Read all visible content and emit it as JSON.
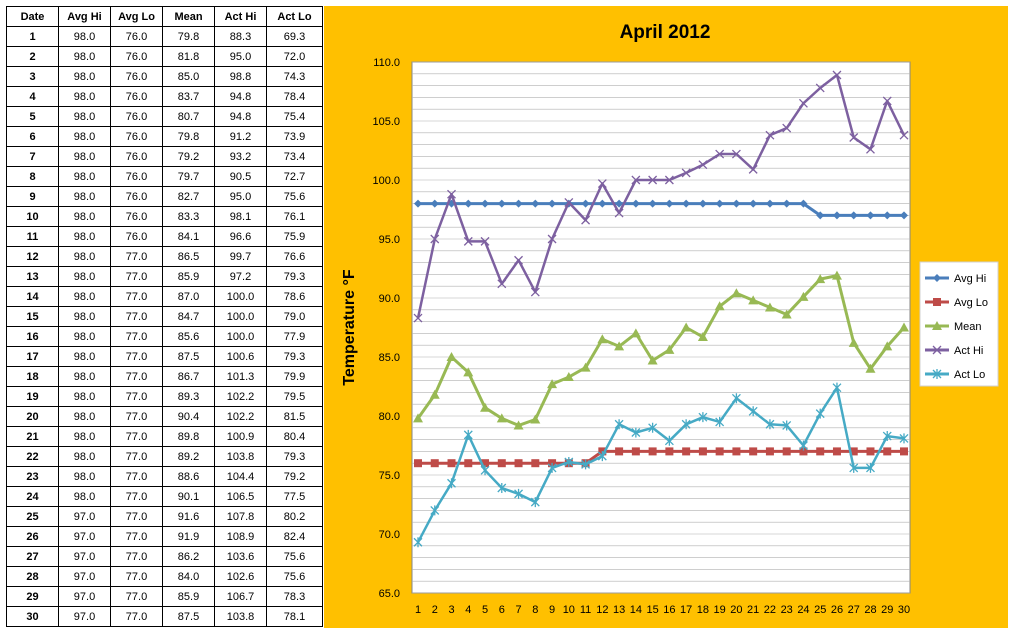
{
  "table": {
    "headers": [
      "Date",
      "Avg Hi",
      "Avg Lo",
      "Mean",
      "Act Hi",
      "Act Lo"
    ],
    "rows": [
      [
        "1",
        "98.0",
        "76.0",
        "79.8",
        "88.3",
        "69.3"
      ],
      [
        "2",
        "98.0",
        "76.0",
        "81.8",
        "95.0",
        "72.0"
      ],
      [
        "3",
        "98.0",
        "76.0",
        "85.0",
        "98.8",
        "74.3"
      ],
      [
        "4",
        "98.0",
        "76.0",
        "83.7",
        "94.8",
        "78.4"
      ],
      [
        "5",
        "98.0",
        "76.0",
        "80.7",
        "94.8",
        "75.4"
      ],
      [
        "6",
        "98.0",
        "76.0",
        "79.8",
        "91.2",
        "73.9"
      ],
      [
        "7",
        "98.0",
        "76.0",
        "79.2",
        "93.2",
        "73.4"
      ],
      [
        "8",
        "98.0",
        "76.0",
        "79.7",
        "90.5",
        "72.7"
      ],
      [
        "9",
        "98.0",
        "76.0",
        "82.7",
        "95.0",
        "75.6"
      ],
      [
        "10",
        "98.0",
        "76.0",
        "83.3",
        "98.1",
        "76.1"
      ],
      [
        "11",
        "98.0",
        "76.0",
        "84.1",
        "96.6",
        "75.9"
      ],
      [
        "12",
        "98.0",
        "77.0",
        "86.5",
        "99.7",
        "76.6"
      ],
      [
        "13",
        "98.0",
        "77.0",
        "85.9",
        "97.2",
        "79.3"
      ],
      [
        "14",
        "98.0",
        "77.0",
        "87.0",
        "100.0",
        "78.6"
      ],
      [
        "15",
        "98.0",
        "77.0",
        "84.7",
        "100.0",
        "79.0"
      ],
      [
        "16",
        "98.0",
        "77.0",
        "85.6",
        "100.0",
        "77.9"
      ],
      [
        "17",
        "98.0",
        "77.0",
        "87.5",
        "100.6",
        "79.3"
      ],
      [
        "18",
        "98.0",
        "77.0",
        "86.7",
        "101.3",
        "79.9"
      ],
      [
        "19",
        "98.0",
        "77.0",
        "89.3",
        "102.2",
        "79.5"
      ],
      [
        "20",
        "98.0",
        "77.0",
        "90.4",
        "102.2",
        "81.5"
      ],
      [
        "21",
        "98.0",
        "77.0",
        "89.8",
        "100.9",
        "80.4"
      ],
      [
        "22",
        "98.0",
        "77.0",
        "89.2",
        "103.8",
        "79.3"
      ],
      [
        "23",
        "98.0",
        "77.0",
        "88.6",
        "104.4",
        "79.2"
      ],
      [
        "24",
        "98.0",
        "77.0",
        "90.1",
        "106.5",
        "77.5"
      ],
      [
        "25",
        "97.0",
        "77.0",
        "91.6",
        "107.8",
        "80.2"
      ],
      [
        "26",
        "97.0",
        "77.0",
        "91.9",
        "108.9",
        "82.4"
      ],
      [
        "27",
        "97.0",
        "77.0",
        "86.2",
        "103.6",
        "75.6"
      ],
      [
        "28",
        "97.0",
        "77.0",
        "84.0",
        "102.6",
        "75.6"
      ],
      [
        "29",
        "97.0",
        "77.0",
        "85.9",
        "106.7",
        "78.3"
      ],
      [
        "30",
        "97.0",
        "77.0",
        "87.5",
        "103.8",
        "78.1"
      ]
    ]
  },
  "chart_data": {
    "type": "line",
    "title": "April 2012",
    "xlabel": "",
    "ylabel": "Temperature °F",
    "x": [
      1,
      2,
      3,
      4,
      5,
      6,
      7,
      8,
      9,
      10,
      11,
      12,
      13,
      14,
      15,
      16,
      17,
      18,
      19,
      20,
      21,
      22,
      23,
      24,
      25,
      26,
      27,
      28,
      29,
      30
    ],
    "ylim": [
      65.0,
      110.0
    ],
    "yticks": [
      "65.0",
      "70.0",
      "75.0",
      "80.0",
      "85.0",
      "90.0",
      "95.0",
      "100.0",
      "105.0",
      "110.0"
    ],
    "grid": true,
    "legend_position": "right",
    "series": [
      {
        "name": "Avg Hi",
        "color": "#4a7ebb",
        "marker": "diamond",
        "values": [
          98.0,
          98.0,
          98.0,
          98.0,
          98.0,
          98.0,
          98.0,
          98.0,
          98.0,
          98.0,
          98.0,
          98.0,
          98.0,
          98.0,
          98.0,
          98.0,
          98.0,
          98.0,
          98.0,
          98.0,
          98.0,
          98.0,
          98.0,
          98.0,
          97.0,
          97.0,
          97.0,
          97.0,
          97.0,
          97.0
        ]
      },
      {
        "name": "Avg Lo",
        "color": "#be4b48",
        "marker": "square",
        "values": [
          76.0,
          76.0,
          76.0,
          76.0,
          76.0,
          76.0,
          76.0,
          76.0,
          76.0,
          76.0,
          76.0,
          77.0,
          77.0,
          77.0,
          77.0,
          77.0,
          77.0,
          77.0,
          77.0,
          77.0,
          77.0,
          77.0,
          77.0,
          77.0,
          77.0,
          77.0,
          77.0,
          77.0,
          77.0,
          77.0
        ]
      },
      {
        "name": "Mean",
        "color": "#98b954",
        "marker": "triangle",
        "values": [
          79.8,
          81.8,
          85.0,
          83.7,
          80.7,
          79.8,
          79.2,
          79.7,
          82.7,
          83.3,
          84.1,
          86.5,
          85.9,
          87.0,
          84.7,
          85.6,
          87.5,
          86.7,
          89.3,
          90.4,
          89.8,
          89.2,
          88.6,
          90.1,
          91.6,
          91.9,
          86.2,
          84.0,
          85.9,
          87.5
        ]
      },
      {
        "name": "Act Hi",
        "color": "#7d60a0",
        "marker": "x",
        "values": [
          88.3,
          95.0,
          98.8,
          94.8,
          94.8,
          91.2,
          93.2,
          90.5,
          95.0,
          98.1,
          96.6,
          99.7,
          97.2,
          100.0,
          100.0,
          100.0,
          100.6,
          101.3,
          102.2,
          102.2,
          100.9,
          103.8,
          104.4,
          106.5,
          107.8,
          108.9,
          103.6,
          102.6,
          106.7,
          103.8
        ]
      },
      {
        "name": "Act Lo",
        "color": "#46aac5",
        "marker": "star",
        "values": [
          69.3,
          72.0,
          74.3,
          78.4,
          75.4,
          73.9,
          73.4,
          72.7,
          75.6,
          76.1,
          75.9,
          76.6,
          79.3,
          78.6,
          79.0,
          77.9,
          79.3,
          79.9,
          79.5,
          81.5,
          80.4,
          79.3,
          79.2,
          77.5,
          80.2,
          82.4,
          75.6,
          75.6,
          78.3,
          78.1
        ]
      }
    ]
  }
}
